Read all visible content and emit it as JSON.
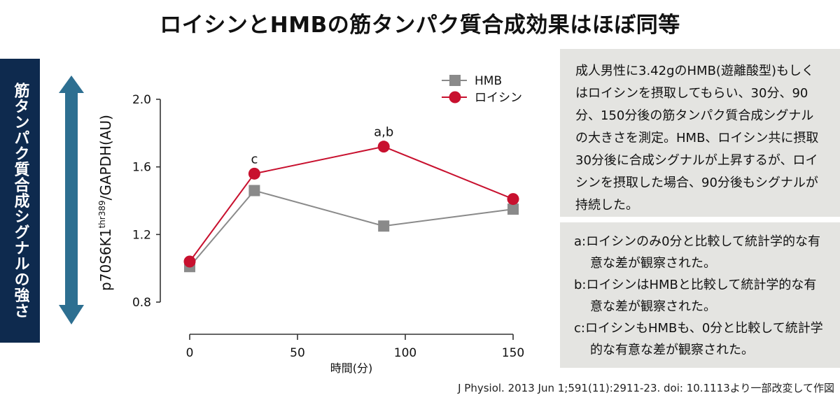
{
  "title": "ロイシンとHMBの筋タンパク質合成効果はほぼ同等",
  "side_label": "筋タンパク質合成シグナルの強さ",
  "colors": {
    "hmb": "#8a8a8a",
    "leucine": "#c8102e",
    "arrow": "#2d6f91",
    "sidebar": "#0e2a4e",
    "panel": "#e4e4e1"
  },
  "chart_data": {
    "type": "line",
    "xlabel": "時間(分)",
    "ylabel_main": "p70S6K1",
    "ylabel_sup": "thr389",
    "ylabel_tail": "/GAPDH(AU)",
    "xlim": [
      0,
      150
    ],
    "ylim": [
      0.8,
      2.0
    ],
    "x_ticks": [
      0,
      50,
      100,
      150
    ],
    "x_tick_labels": [
      "0",
      "50",
      "100",
      "150"
    ],
    "y_ticks": [
      0.8,
      1.2,
      1.6,
      2.0
    ],
    "y_tick_labels": [
      "0.8",
      "1.2",
      "1.6",
      "2.0"
    ],
    "legend_position": "top-right",
    "series": [
      {
        "name": "HMB",
        "marker": "square",
        "x": [
          0,
          30,
          90,
          150
        ],
        "values": [
          1.01,
          1.46,
          1.25,
          1.35
        ]
      },
      {
        "name": "ロイシン",
        "marker": "circle",
        "x": [
          0,
          30,
          90,
          150
        ],
        "values": [
          1.04,
          1.56,
          1.72,
          1.41
        ]
      }
    ],
    "annotations": [
      {
        "text": "c",
        "x": 30,
        "y": 1.56
      },
      {
        "text": "a,b",
        "x": 90,
        "y": 1.72
      }
    ]
  },
  "description": "成人男性に3.42gのHMB(遊離酸型)もしくはロイシンを摂取してもらい、30分、90分、150分後の筋タンパク質合成シグナルの大きさを測定。HMB、ロイシン共に摂取30分後に合成シグナルが上昇するが、ロイシンを摂取した場合、90分後もシグナルが持続した。",
  "notes": [
    "a:ロイシンのみ0分と比較して統計学的な有意な差が観察された。",
    "b:ロイシンはHMBと比較して統計学的な有意な差が観察された。",
    "c:ロイシンもHMBも、0分と比較して統計学的な有意な差が観察された。"
  ],
  "citation": "J Physiol. 2013 Jun 1;591(11):2911-23. doi: 10.1113より一部改変して作図"
}
